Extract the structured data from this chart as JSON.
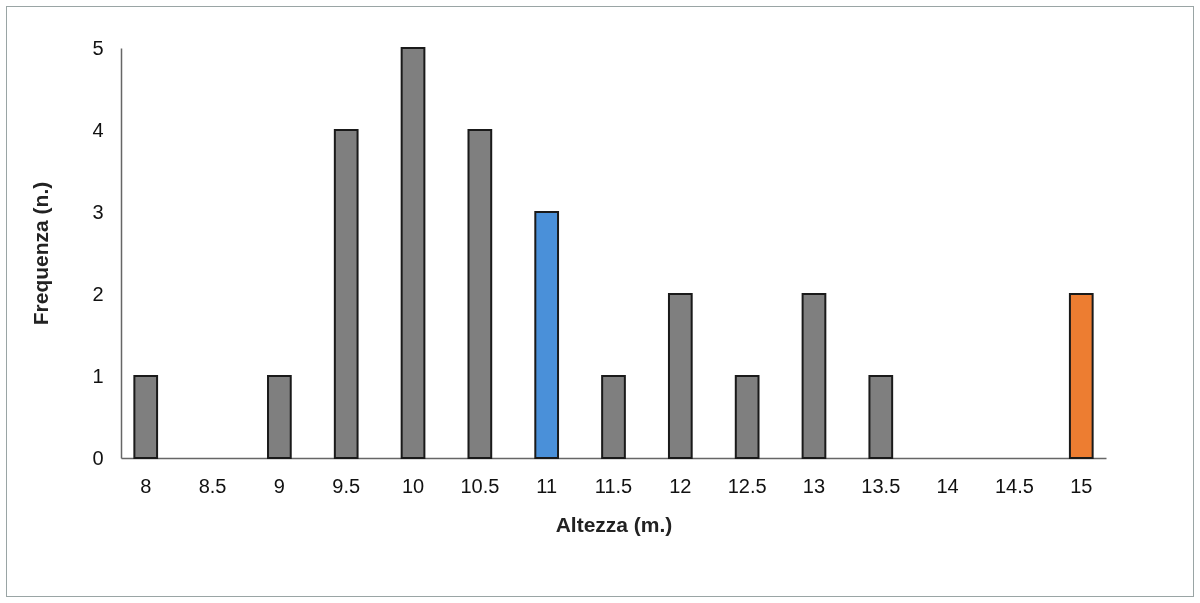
{
  "chart_data": {
    "type": "bar",
    "xlabel": "Altezza (m.)",
    "ylabel": "Frequenza (n.)",
    "categories": [
      "8",
      "8.5",
      "9",
      "9.5",
      "10",
      "10.5",
      "11",
      "11.5",
      "12",
      "12.5",
      "13",
      "13.5",
      "14",
      "14.5",
      "15"
    ],
    "values": [
      1,
      0,
      1,
      4,
      5,
      4,
      3,
      1,
      2,
      1,
      2,
      1,
      0,
      0,
      2
    ],
    "colors": [
      "#7f7f7f",
      "#7f7f7f",
      "#7f7f7f",
      "#7f7f7f",
      "#7f7f7f",
      "#7f7f7f",
      "#4a90d9",
      "#7f7f7f",
      "#7f7f7f",
      "#7f7f7f",
      "#7f7f7f",
      "#7f7f7f",
      "#7f7f7f",
      "#7f7f7f",
      "#ed7d31"
    ],
    "ylim": [
      0,
      5
    ],
    "yticks": [
      0,
      1,
      2,
      3,
      4,
      5
    ],
    "grid": false
  }
}
